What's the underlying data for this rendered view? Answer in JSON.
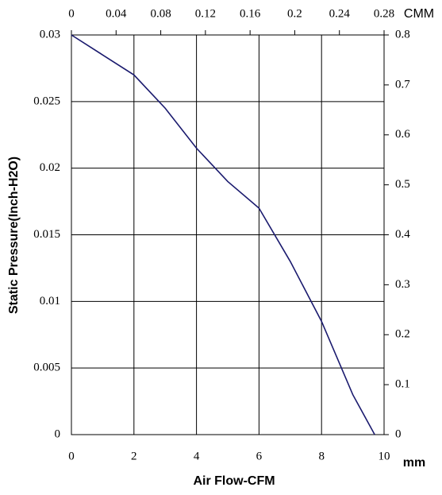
{
  "chart_data": {
    "type": "line",
    "x_label": "Air Flow-CFM",
    "y_label": "Static Pressure(Inch-H2O)",
    "x2_label": "CMM",
    "y2_label": "mm",
    "x": [
      0,
      1,
      2,
      3,
      4,
      5,
      6,
      7,
      8,
      9,
      9.7
    ],
    "values": [
      0.03,
      0.0285,
      0.027,
      0.0245,
      0.0215,
      0.019,
      0.017,
      0.013,
      0.0085,
      0.003,
      0
    ],
    "color": "#1a1a6e",
    "xlim": [
      0,
      10
    ],
    "xticks": [
      0,
      2,
      4,
      6,
      8,
      10
    ],
    "ylim": [
      0,
      0.03
    ],
    "yticks": [
      0,
      0.005,
      0.01,
      0.015,
      0.02,
      0.025,
      0.03
    ],
    "x2lim": [
      0,
      0.28
    ],
    "x2ticks": [
      0,
      0.04,
      0.08,
      0.12,
      0.16,
      0.2,
      0.24,
      0.28
    ],
    "y2lim": [
      0,
      0.8
    ],
    "y2ticks": [
      0,
      0.1,
      0.2,
      0.3,
      0.4,
      0.5,
      0.6,
      0.7,
      0.8
    ],
    "grid": true
  }
}
